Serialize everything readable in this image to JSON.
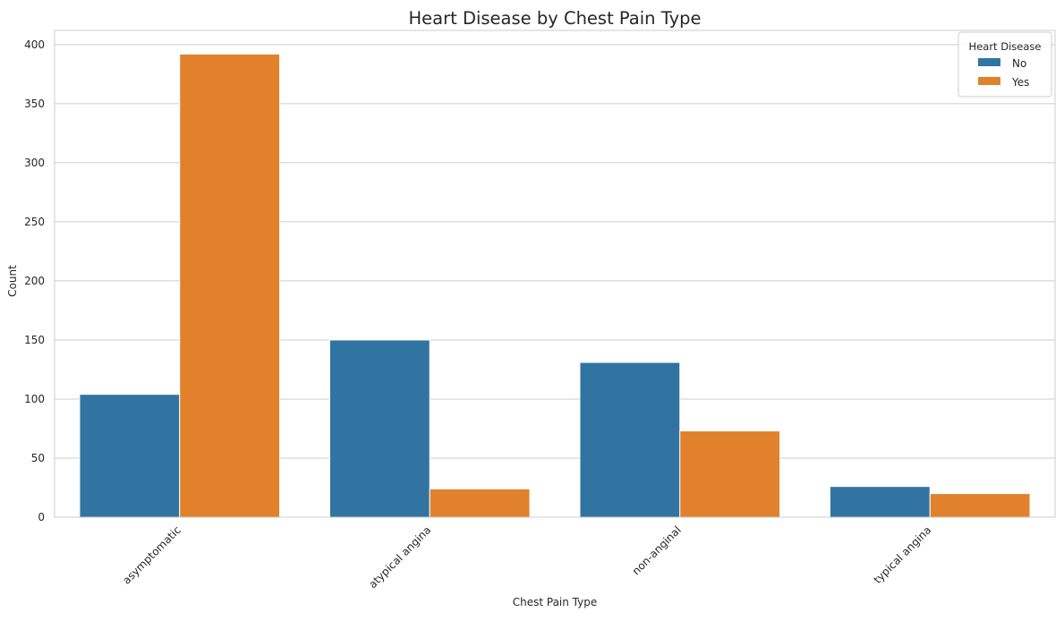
{
  "chart_data": {
    "type": "bar",
    "title": "Heart Disease by Chest Pain Type",
    "xlabel": "Chest Pain Type",
    "ylabel": "Count",
    "categories": [
      "asymptomatic",
      "atypical angina",
      "non-anginal",
      "typical angina"
    ],
    "series": [
      {
        "name": "No",
        "color": "#3274a1",
        "values": [
          104,
          150,
          131,
          26
        ]
      },
      {
        "name": "Yes",
        "color": "#e1812c",
        "values": [
          392,
          24,
          73,
          20
        ]
      }
    ],
    "yticks": [
      0,
      50,
      100,
      150,
      200,
      250,
      300,
      350,
      400
    ],
    "ylim": [
      0,
      412
    ],
    "grid": "horizontal",
    "legend": {
      "title": "Heart Disease",
      "position": "top-right"
    },
    "xtick_rotation": -45
  }
}
